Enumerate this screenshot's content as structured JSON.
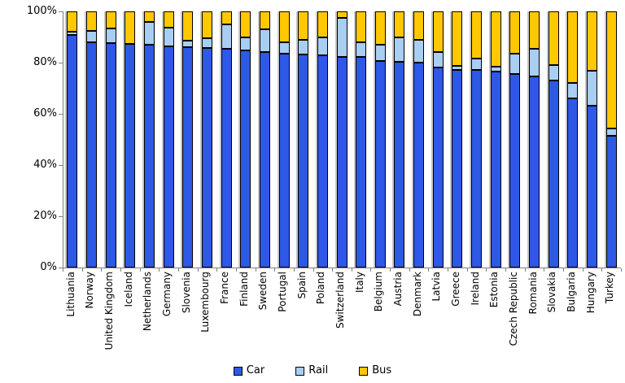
{
  "chart_data": {
    "type": "bar",
    "stacked": true,
    "percent_stacked": true,
    "title": "",
    "xlabel": "",
    "ylabel": "",
    "ylim": [
      0,
      100
    ],
    "ytick_step": 20,
    "yticks": [
      "0%",
      "20%",
      "40%",
      "60%",
      "80%",
      "100%"
    ],
    "grid": false,
    "legend_position": "bottom",
    "categories": [
      "Lithuania",
      "Norway",
      "United Kingdom",
      "Iceland",
      "Netherlands",
      "Germany",
      "Slovenia",
      "Luxembourg",
      "France",
      "Finland",
      "Sweden",
      "Portugal",
      "Spain",
      "Poland",
      "Switzerland",
      "Italy",
      "Belgium",
      "Austria",
      "Denmark",
      "Latvia",
      "Greece",
      "Ireland",
      "Estonia",
      "Czech Republic",
      "Romania",
      "Slovakia",
      "Bulgaria",
      "Hungary",
      "Turkey"
    ],
    "series": [
      {
        "name": "Car",
        "color": "#2E58E6",
        "values": [
          90.8,
          87.9,
          87.6,
          87.3,
          86.9,
          86.4,
          86.0,
          85.7,
          85.5,
          84.7,
          84.2,
          83.4,
          83.2,
          82.8,
          82.3,
          82.2,
          80.7,
          80.4,
          80.1,
          78.0,
          77.2,
          77.0,
          76.5,
          75.5,
          74.5,
          72.9,
          66.0,
          63.1,
          51.3
        ]
      },
      {
        "name": "Rail",
        "color": "#A8CEF2",
        "values": [
          1.2,
          4.6,
          5.8,
          0.0,
          9.0,
          7.3,
          2.5,
          3.8,
          9.4,
          5.3,
          8.7,
          4.6,
          5.8,
          6.9,
          15.2,
          5.7,
          6.4,
          9.6,
          8.9,
          6.2,
          1.4,
          4.5,
          2.0,
          8.0,
          11.0,
          6.1,
          6.2,
          13.7,
          3.0
        ]
      },
      {
        "name": "Bus",
        "color": "#FFC800",
        "values": [
          8.0,
          7.5,
          6.6,
          12.7,
          4.1,
          6.3,
          11.5,
          10.5,
          5.1,
          10.0,
          7.1,
          12.0,
          11.0,
          10.3,
          2.5,
          12.1,
          12.9,
          10.0,
          11.0,
          15.8,
          21.4,
          18.5,
          21.5,
          16.5,
          14.5,
          21.0,
          27.8,
          23.2,
          45.7
        ]
      }
    ],
    "axis_color": "#808080",
    "background_color": "#ffffff"
  }
}
